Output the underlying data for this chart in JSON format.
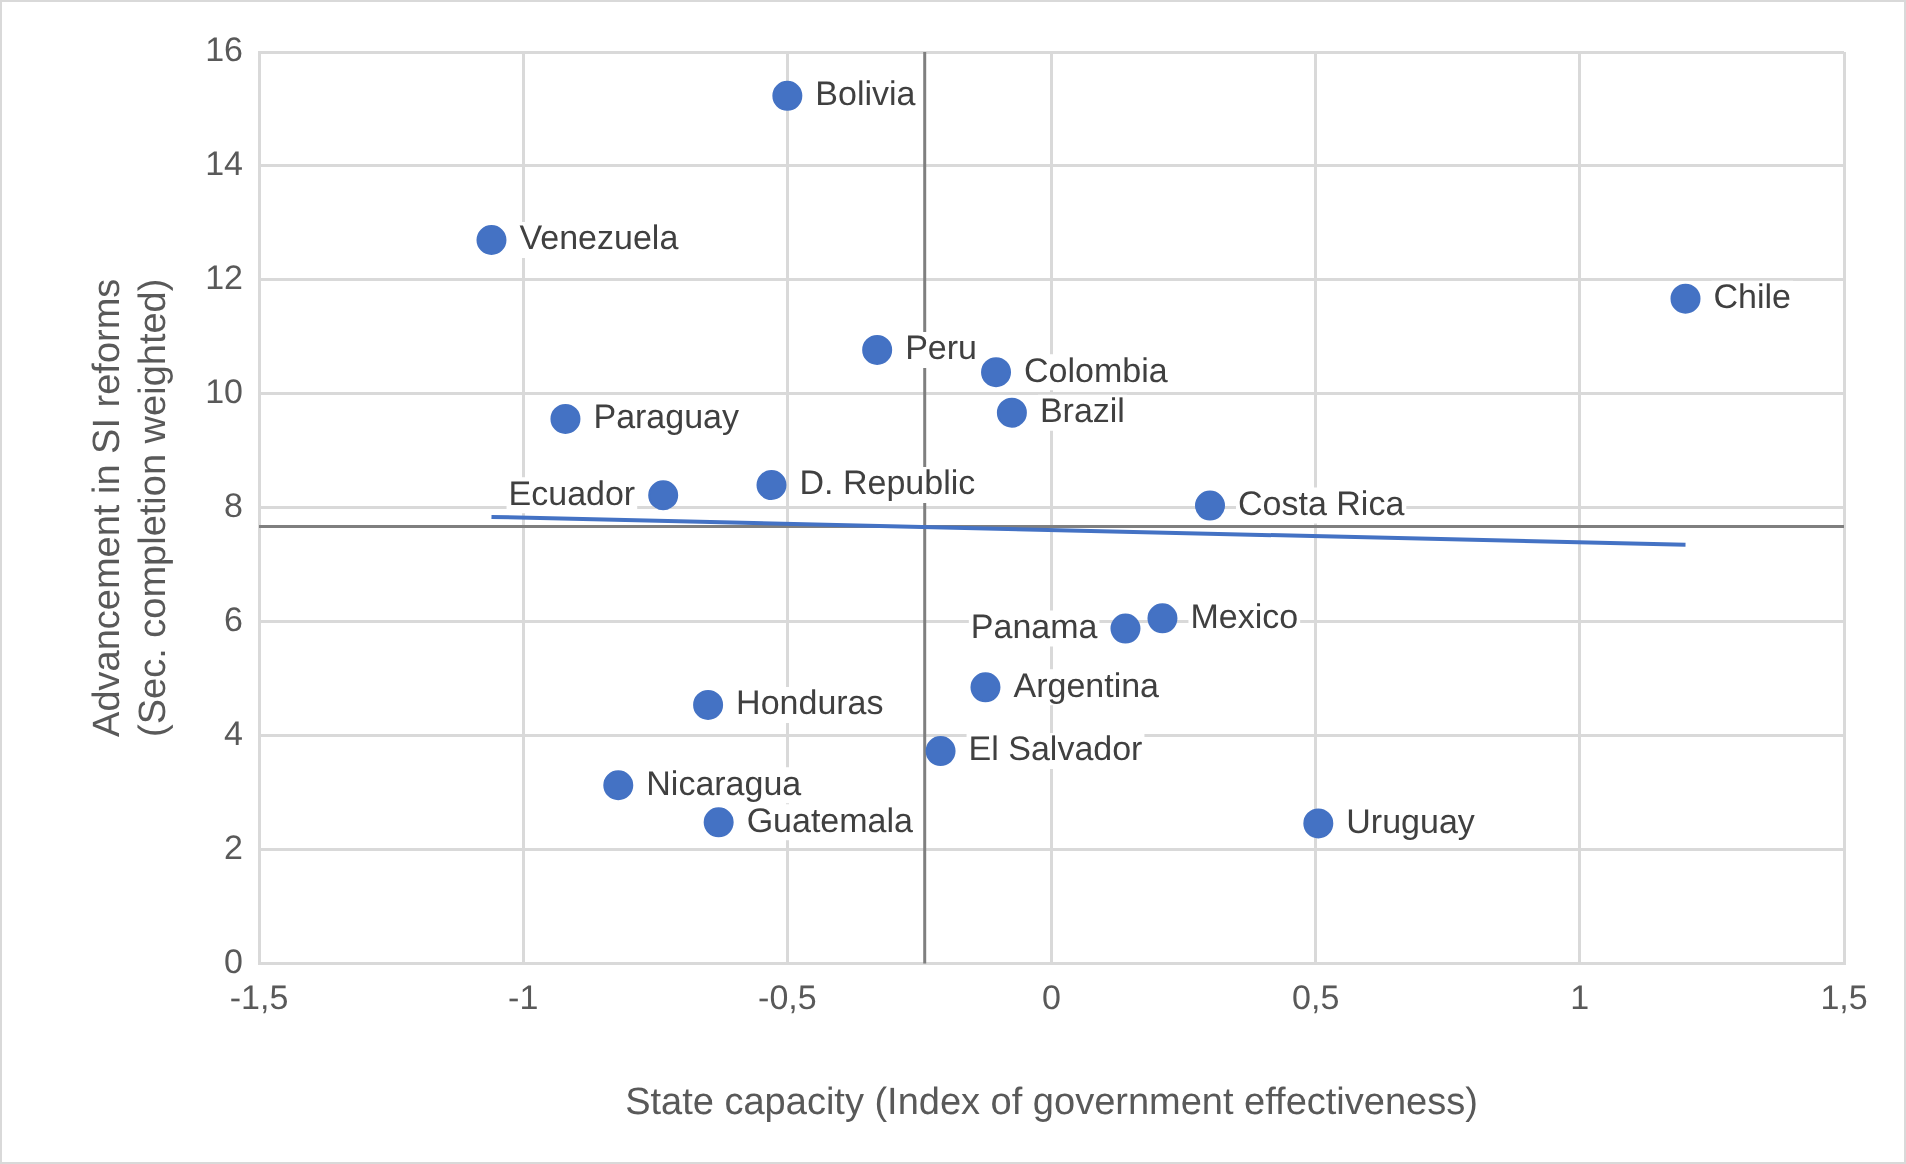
{
  "chart_data": {
    "type": "scatter",
    "xlabel": "State capacity (Index of government effectiveness)",
    "ylabel": "Advancement in SI reforms (Sec. completion weighted)",
    "xlim": [
      -1.5,
      1.5
    ],
    "xticks": [
      {
        "value": -1.5,
        "label": "-1,5"
      },
      -1,
      {
        "value": -0.5,
        "label": "-0,5"
      },
      0,
      {
        "value": 0.5,
        "label": "0,5"
      },
      1,
      {
        "value": 1.5,
        "label": "1,5"
      }
    ],
    "ylim": [
      0,
      16
    ],
    "yticks": [
      0,
      2,
      4,
      6,
      8,
      10,
      12,
      14,
      16
    ],
    "grid": true,
    "marker": "circle",
    "series": [
      {
        "color": "#4472c4",
        "x": [
          -0.5,
          -1.06,
          -0.33,
          -0.105,
          -0.075,
          1.2,
          -0.92,
          -0.53,
          -0.735,
          0.3,
          0.21,
          0.14,
          -0.125,
          -0.65,
          -0.21,
          -0.82,
          -0.63,
          0.505
        ],
        "values": [
          15.23,
          12.7,
          10.77,
          10.38,
          9.67,
          11.67,
          9.56,
          8.4,
          8.22,
          8.04,
          6.06,
          5.88,
          4.85,
          4.54,
          3.73,
          3.13,
          2.48,
          2.46
        ]
      },
      {
        "type": "line",
        "marker": "none",
        "color": "#4472c4",
        "x": [
          -1.06,
          1.2
        ],
        "values": [
          7.84,
          7.35
        ]
      }
    ],
    "ref_lines": [
      {
        "axis": "x",
        "value": -0.24,
        "color": "#7f7f7f"
      },
      {
        "axis": "y",
        "value": 7.67,
        "color": "#7f7f7f"
      }
    ],
    "annotations": [
      {
        "text": "Bolivia",
        "x": -0.5,
        "y": 15.23
      },
      {
        "text": "Venezuela",
        "x": -1.06,
        "y": 12.7
      },
      {
        "text": "Peru",
        "x": -0.33,
        "y": 10.77
      },
      {
        "text": "Colombia",
        "x": -0.105,
        "y": 10.38
      },
      {
        "text": "Brazil",
        "x": -0.075,
        "y": 9.67
      },
      {
        "text": "Chile",
        "x": 1.2,
        "y": 11.67
      },
      {
        "text": "Paraguay",
        "x": -0.92,
        "y": 9.56
      },
      {
        "text": "D. Republic",
        "x": -0.53,
        "y": 8.4
      },
      {
        "text": "Ecuador",
        "x": -0.735,
        "y": 8.22
      },
      {
        "text": "Costa Rica",
        "x": 0.3,
        "y": 8.04
      },
      {
        "text": "Mexico",
        "x": 0.21,
        "y": 6.06
      },
      {
        "text": "Panama",
        "x": 0.14,
        "y": 5.88
      },
      {
        "text": "Argentina",
        "x": -0.125,
        "y": 4.85
      },
      {
        "text": "Honduras",
        "x": -0.65,
        "y": 4.54
      },
      {
        "text": "El Salvador",
        "x": -0.21,
        "y": 3.73
      },
      {
        "text": "Nicaragua",
        "x": -0.82,
        "y": 3.13
      },
      {
        "text": "Guatemala",
        "x": -0.63,
        "y": 2.48
      },
      {
        "text": "Uruguay",
        "x": 0.505,
        "y": 2.46
      }
    ]
  }
}
